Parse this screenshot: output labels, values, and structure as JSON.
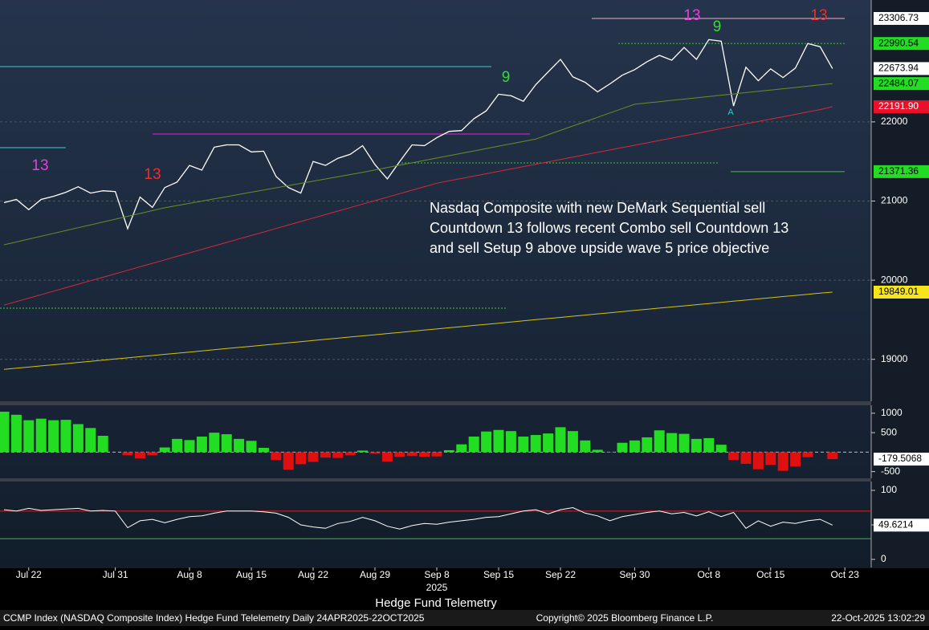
{
  "title": "Hedge Fund Telemetry",
  "footer": {
    "left": "CCMP Index (NASDAQ Composite Index) Hedge Fund Telelemetry Daily 24APR2025-22OCT2025",
    "center": "Copyright© 2025 Bloomberg Finance L.P.",
    "right": "22-Oct-2025 13:02:29"
  },
  "chart_data": [
    {
      "type": "line",
      "annotation": [
        "Nasdaq Composite with new DeMark Sequential sell",
        "Countdown 13 follows recent Combo sell Countdown 13",
        "and sell Setup 9 above upside wave 5 price objective"
      ],
      "categories": [
        null,
        null,
        "Jul 22",
        null,
        null,
        null,
        null,
        null,
        null,
        "Jul 31",
        null,
        null,
        null,
        null,
        null,
        "Aug 8",
        null,
        null,
        null,
        null,
        "Aug 15",
        null,
        null,
        null,
        null,
        "Aug 22",
        null,
        null,
        null,
        null,
        "Aug 29",
        null,
        null,
        null,
        null,
        "Sep 8",
        null,
        null,
        null,
        null,
        "Sep 15",
        null,
        null,
        null,
        null,
        "Sep 22",
        null,
        null,
        null,
        null,
        null,
        "Sep 30",
        null,
        null,
        null,
        null,
        null,
        "Oct 8",
        null,
        null,
        null,
        null,
        "Oct 15",
        null,
        null,
        null,
        null,
        null,
        "Oct 23"
      ],
      "year_label": "2025",
      "ylim": [
        18470,
        23540
      ],
      "yticks": [
        22000,
        21000,
        20000,
        19000
      ],
      "grid": true,
      "series": [
        {
          "color": "#ffffff",
          "values": [
            20980,
            21020,
            20890,
            21020,
            21060,
            21110,
            21180,
            21100,
            21130,
            21120,
            20650,
            21050,
            20920,
            21170,
            21240,
            21450,
            21390,
            21680,
            21710,
            21710,
            21620,
            21630,
            21310,
            21170,
            21100,
            21500,
            21450,
            21540,
            21590,
            21700,
            21460,
            21280,
            21500,
            21710,
            21700,
            21800,
            21880,
            21890,
            22040,
            22140,
            22350,
            22330,
            22260,
            22470,
            22630,
            22790,
            22570,
            22500,
            22380,
            22480,
            22590,
            22660,
            22760,
            22840,
            22780,
            22940,
            22790,
            23040,
            23020,
            22200,
            22690,
            22520,
            22670,
            22560,
            22680,
            22990,
            22950,
            22673.94,
            null
          ],
          "value_labels": [
            null,
            null,
            null,
            null,
            null,
            null,
            null,
            null,
            null,
            null,
            null,
            null,
            null,
            null,
            null,
            null,
            null,
            null,
            null,
            null,
            null,
            null,
            null,
            null,
            null,
            null,
            null,
            null,
            null,
            null,
            null,
            null,
            null,
            null,
            null,
            null,
            null,
            null,
            null,
            null,
            null,
            null,
            null,
            null,
            null,
            null,
            null,
            null,
            null,
            null,
            null,
            null,
            null,
            null,
            null,
            null,
            null,
            null,
            null,
            null,
            null,
            null,
            null,
            null,
            null,
            null,
            null,
            "22673.94",
            null
          ],
          "label_color": "#ffffff",
          "label_text": "#000000"
        },
        {
          "color": "#6b8e23",
          "values": [
            20447,
            20483,
            20519,
            20555,
            20591,
            20627,
            20663,
            20699,
            20735,
            20771,
            20807,
            20843,
            20879,
            20915,
            20943,
            20971,
            20999,
            21027,
            21055,
            21083,
            21111,
            21139,
            21167,
            21195,
            21223,
            21251,
            21279,
            21307,
            21335,
            21363,
            21393,
            21423,
            21453,
            21483,
            21513,
            21543,
            21573,
            21603,
            21633,
            21663,
            21693,
            21723,
            21753,
            21783,
            21838,
            21893,
            21948,
            22003,
            22058,
            22113,
            22168,
            22223,
            22239,
            22255,
            22272,
            22288,
            22304,
            22321,
            22337,
            22353,
            22370,
            22386,
            22402,
            22419,
            22435,
            22451,
            22468,
            22484.07,
            null
          ],
          "value_labels": [
            null,
            null,
            null,
            null,
            null,
            null,
            null,
            null,
            null,
            null,
            null,
            null,
            null,
            null,
            null,
            null,
            null,
            null,
            null,
            null,
            null,
            null,
            null,
            null,
            null,
            null,
            null,
            null,
            null,
            null,
            null,
            null,
            null,
            null,
            null,
            null,
            null,
            null,
            null,
            null,
            null,
            null,
            null,
            null,
            null,
            null,
            null,
            null,
            null,
            null,
            null,
            null,
            null,
            null,
            null,
            null,
            null,
            null,
            null,
            null,
            null,
            null,
            null,
            null,
            null,
            null,
            null,
            "22484.07",
            null
          ],
          "label_color": "#22dd22",
          "label_text": "#000000"
        },
        {
          "color": "#d8283c",
          "values": [
            19685,
            19729,
            19773,
            19817,
            19861,
            19905,
            19949,
            19993,
            20037,
            20081,
            20125,
            20169,
            20213,
            20257,
            20301,
            20345,
            20389,
            20433,
            20477,
            20521,
            20565,
            20609,
            20653,
            20697,
            20741,
            20785,
            20829,
            20873,
            20917,
            20961,
            21005,
            21049,
            21093,
            21137,
            21181,
            21225,
            21255,
            21285,
            21315,
            21345,
            21375,
            21405,
            21435,
            21465,
            21495,
            21525,
            21555,
            21585,
            21615,
            21645,
            21675,
            21705,
            21735,
            21765,
            21795,
            21825,
            21855,
            21885,
            21915,
            21945,
            21975,
            22005,
            22035,
            22065,
            22095,
            22125,
            22155,
            22191.9,
            null
          ],
          "value_labels": [
            null,
            null,
            null,
            null,
            null,
            null,
            null,
            null,
            null,
            null,
            null,
            null,
            null,
            null,
            null,
            null,
            null,
            null,
            null,
            null,
            null,
            null,
            null,
            null,
            null,
            null,
            null,
            null,
            null,
            null,
            null,
            null,
            null,
            null,
            null,
            null,
            null,
            null,
            null,
            null,
            null,
            null,
            null,
            null,
            null,
            null,
            null,
            null,
            null,
            null,
            null,
            null,
            null,
            null,
            null,
            null,
            null,
            null,
            null,
            null,
            null,
            null,
            null,
            null,
            null,
            null,
            null,
            "22191.90",
            null
          ],
          "label_color": "#e8102a",
          "label_text": "#ffffff"
        },
        {
          "color": "#d4c410",
          "values": [
            18873,
            18888,
            18902,
            18917,
            18931,
            18946,
            18961,
            18975,
            18990,
            19004,
            19019,
            19034,
            19048,
            19063,
            19077,
            19092,
            19107,
            19121,
            19136,
            19150,
            19165,
            19180,
            19194,
            19209,
            19223,
            19238,
            19253,
            19267,
            19282,
            19296,
            19311,
            19326,
            19340,
            19355,
            19369,
            19384,
            19399,
            19413,
            19428,
            19442,
            19457,
            19472,
            19486,
            19501,
            19515,
            19530,
            19545,
            19559,
            19574,
            19588,
            19603,
            19618,
            19632,
            19647,
            19661,
            19676,
            19691,
            19705,
            19720,
            19734,
            19749,
            19764,
            19778,
            19793,
            19807,
            19822,
            19837,
            19849.01,
            null
          ],
          "value_labels": [
            null,
            null,
            null,
            null,
            null,
            null,
            null,
            null,
            null,
            null,
            null,
            null,
            null,
            null,
            null,
            null,
            null,
            null,
            null,
            null,
            null,
            null,
            null,
            null,
            null,
            null,
            null,
            null,
            null,
            null,
            null,
            null,
            null,
            null,
            null,
            null,
            null,
            null,
            null,
            null,
            null,
            null,
            null,
            null,
            null,
            null,
            null,
            null,
            null,
            null,
            null,
            null,
            null,
            null,
            null,
            null,
            null,
            null,
            null,
            null,
            null,
            null,
            null,
            null,
            null,
            null,
            null,
            "19849.01",
            null
          ],
          "label_color": "#f5e51a",
          "label_text": "#000000"
        }
      ],
      "levels": [
        {
          "value": 23306.73,
          "label": "23306.73",
          "color": "#ffffff",
          "line": "#f0b0c0"
        },
        {
          "value": 22990.54,
          "label": "22990.54",
          "color": "#22dd22",
          "line": "#33cc33"
        },
        {
          "value": 21371.36,
          "label": "21371.36",
          "color": "#22dd22",
          "line": "#33cc33"
        }
      ],
      "demark_labels": [
        {
          "label": "13",
          "color": "#e040e0"
        },
        {
          "label": "13",
          "color": "#e83030"
        },
        {
          "label": "9",
          "color": "#33dd33"
        },
        {
          "label": "13",
          "color": "#e040e0"
        },
        {
          "label": "9",
          "color": "#33dd33"
        },
        {
          "label": "13",
          "color": "#e83030"
        },
        {
          "label": "A",
          "color": "#33cccc"
        }
      ]
    },
    {
      "type": "bar",
      "ylim": [
        -673,
        1204
      ],
      "yticks": [
        1000,
        500,
        -500
      ],
      "colors": {
        "positive": "#22dd22",
        "negative": "#e01010"
      },
      "values": [
        1040,
        960,
        820,
        860,
        820,
        830,
        720,
        620,
        420,
        0,
        -80,
        -160,
        -80,
        120,
        340,
        310,
        400,
        500,
        460,
        340,
        290,
        110,
        -200,
        -450,
        -310,
        -250,
        -140,
        -150,
        -80,
        40,
        -40,
        -240,
        -120,
        -100,
        -120,
        -110,
        50,
        200,
        400,
        530,
        570,
        540,
        400,
        440,
        480,
        640,
        540,
        300,
        60,
        -10,
        240,
        300,
        380,
        560,
        490,
        470,
        340,
        360,
        190,
        -200,
        -300,
        -440,
        -330,
        -480,
        -370,
        -130,
        0,
        -179.5068,
        null
      ],
      "value_labels": [
        null,
        null,
        null,
        null,
        null,
        null,
        null,
        null,
        null,
        null,
        null,
        null,
        null,
        null,
        null,
        null,
        null,
        null,
        null,
        null,
        null,
        null,
        null,
        null,
        null,
        null,
        null,
        null,
        null,
        null,
        null,
        null,
        null,
        null,
        null,
        null,
        null,
        null,
        null,
        null,
        null,
        null,
        null,
        null,
        null,
        null,
        null,
        null,
        null,
        null,
        null,
        null,
        null,
        null,
        null,
        null,
        null,
        null,
        null,
        null,
        null,
        null,
        null,
        null,
        null,
        null,
        null,
        "-179.5068",
        null
      ]
    },
    {
      "type": "line",
      "ylim": [
        -11.6,
        112.8
      ],
      "yticks": [
        100,
        50,
        0
      ],
      "levels": [
        {
          "value": 70,
          "color": "#e02020"
        },
        {
          "value": 30,
          "color": "#22cc22"
        }
      ],
      "series": [
        {
          "color": "#ffffff",
          "values": [
            72,
            70,
            74,
            71,
            72,
            73,
            74,
            70,
            71,
            70,
            46,
            56,
            58,
            53,
            58,
            62,
            63,
            67,
            70,
            70,
            70,
            69,
            67,
            61,
            50,
            47,
            45,
            52,
            55,
            61,
            56,
            48,
            44,
            49,
            52,
            51,
            54,
            56,
            58,
            61,
            62,
            66,
            70,
            72,
            66,
            72,
            75,
            67,
            63,
            56,
            62,
            65,
            68,
            70,
            66,
            68,
            63,
            69,
            62,
            68,
            45,
            56,
            48,
            54,
            52,
            56,
            58,
            49.6214,
            null
          ],
          "value_labels": [
            null,
            null,
            null,
            null,
            null,
            null,
            null,
            null,
            null,
            null,
            null,
            null,
            null,
            null,
            null,
            null,
            null,
            null,
            null,
            null,
            null,
            null,
            null,
            null,
            null,
            null,
            null,
            null,
            null,
            null,
            null,
            null,
            null,
            null,
            null,
            null,
            null,
            null,
            null,
            null,
            null,
            null,
            null,
            null,
            null,
            null,
            null,
            null,
            null,
            null,
            null,
            null,
            null,
            null,
            null,
            null,
            null,
            null,
            null,
            null,
            null,
            null,
            null,
            null,
            null,
            null,
            null,
            "49.6214",
            null
          ],
          "label_color": "#ffffff",
          "label_text": "#000000"
        }
      ]
    }
  ]
}
